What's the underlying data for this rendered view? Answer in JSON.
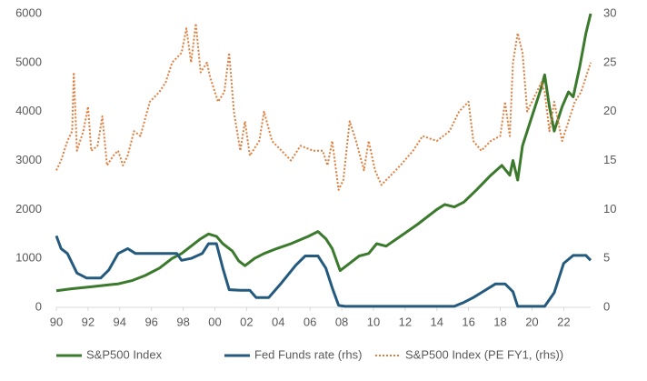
{
  "chart_data": {
    "type": "line",
    "legend": "bottom",
    "xlim": [
      1990,
      2023.7
    ],
    "xticks": [
      {
        "value": 1990,
        "label": "90"
      },
      {
        "value": 1992,
        "label": "92"
      },
      {
        "value": 1994,
        "label": "94"
      },
      {
        "value": 1996,
        "label": "96"
      },
      {
        "value": 1998,
        "label": "98"
      },
      {
        "value": 2000,
        "label": "00"
      },
      {
        "value": 2002,
        "label": "02"
      },
      {
        "value": 2004,
        "label": "04"
      },
      {
        "value": 2006,
        "label": "06"
      },
      {
        "value": 2008,
        "label": "08"
      },
      {
        "value": 2010,
        "label": "10"
      },
      {
        "value": 2012,
        "label": "12"
      },
      {
        "value": 2014,
        "label": "14"
      },
      {
        "value": 2016,
        "label": "16"
      },
      {
        "value": 2018,
        "label": "18"
      },
      {
        "value": 2020,
        "label": "20"
      },
      {
        "value": 2022,
        "label": "22"
      }
    ],
    "ylim": [
      0,
      6000
    ],
    "yticks": [
      0,
      1000,
      2000,
      3000,
      4000,
      5000,
      6000
    ],
    "y2lim": [
      0,
      30
    ],
    "y2ticks": [
      0,
      5,
      10,
      15,
      20,
      25,
      30
    ],
    "series": [
      {
        "name": "S&P500 Index",
        "color": "#3b7a2d",
        "line_style": "solid",
        "x": [
          1990.0,
          1991.0,
          1992.2,
          1993.3,
          1993.9,
          1994.8,
          1995.6,
          1996.5,
          1997.3,
          1997.9,
          1998.5,
          1999.1,
          1999.6,
          2000.1,
          2000.5,
          2001.1,
          2001.5,
          2001.9,
          2002.5,
          2003.1,
          2003.9,
          2004.8,
          2005.9,
          2006.5,
          2007.0,
          2007.4,
          2007.9,
          2008.5,
          2009.1,
          2009.7,
          2010.2,
          2010.8,
          2011.7,
          2012.8,
          2014.0,
          2014.5,
          2015.1,
          2015.7,
          2016.5,
          2017.4,
          2018.1,
          2018.6,
          2018.8,
          2019.1,
          2019.4,
          2020.0,
          2020.6,
          2020.8,
          2021.1,
          2021.4,
          2021.9,
          2022.3,
          2022.6,
          2023.0,
          2023.4,
          2023.7
        ],
        "values": [
          340,
          380,
          420,
          460,
          480,
          550,
          650,
          800,
          1000,
          1100,
          1250,
          1400,
          1500,
          1450,
          1300,
          1150,
          950,
          850,
          1000,
          1100,
          1200,
          1300,
          1450,
          1550,
          1400,
          1200,
          750,
          900,
          1050,
          1100,
          1300,
          1250,
          1450,
          1700,
          2000,
          2100,
          2050,
          2150,
          2400,
          2700,
          2900,
          2700,
          3000,
          2600,
          3300,
          3900,
          4500,
          4750,
          4100,
          3600,
          4100,
          4400,
          4300,
          4900,
          5600,
          6000
        ]
      },
      {
        "name": "Fed Funds rate (rhs)",
        "color": "#245a7d",
        "axis": "y2",
        "line_style": "solid",
        "x": [
          1990.0,
          1990.3,
          1990.7,
          1991.3,
          1991.9,
          1992.8,
          1993.3,
          1993.9,
          1994.5,
          1995.0,
          1995.9,
          1996.8,
          1997.6,
          1997.9,
          1998.5,
          1999.2,
          1999.6,
          2000.1,
          2000.5,
          2000.9,
          2001.6,
          2002.2,
          2002.6,
          2003.4,
          2004.2,
          2005.1,
          2005.7,
          2006.5,
          2007.0,
          2007.4,
          2007.8,
          2008.2,
          2010.5,
          2015.1,
          2015.7,
          2016.3,
          2016.8,
          2017.7,
          2018.3,
          2018.8,
          2019.1,
          2020.8,
          2021.4,
          2022.0,
          2022.6,
          2023.4,
          2023.7
        ],
        "values": [
          7.3,
          6,
          5.5,
          3.5,
          3,
          3,
          3.8,
          5.5,
          6,
          5.5,
          5.5,
          5.5,
          5.5,
          4.8,
          5,
          5.5,
          6.5,
          6.5,
          4,
          1.8,
          1.75,
          1.75,
          1,
          1,
          2.5,
          4.3,
          5.25,
          5.25,
          4,
          2,
          0.2,
          0.1,
          0.1,
          0.1,
          0.5,
          1,
          1.5,
          2.4,
          2.4,
          1.6,
          0.1,
          0.1,
          1.5,
          4.5,
          5.3,
          5.3,
          4.8
        ]
      },
      {
        "name": "S&P500 Index (PE FY1, (rhs))",
        "color": "#e07d3c",
        "axis": "y2",
        "line_style": "dotted",
        "x": [
          1990.0,
          1990.3,
          1990.7,
          1991.0,
          1991.1,
          1991.3,
          1991.7,
          1992.0,
          1992.2,
          1992.6,
          1992.9,
          1993.2,
          1993.6,
          1993.9,
          1994.2,
          1994.5,
          1994.9,
          1995.3,
          1995.9,
          1996.5,
          1996.9,
          1997.3,
          1997.9,
          1998.2,
          1998.5,
          1998.8,
          1999.1,
          1999.5,
          1999.7,
          2000.2,
          2000.6,
          2000.9,
          2001.2,
          2001.6,
          2001.9,
          2002.2,
          2002.8,
          2003.1,
          2003.6,
          2004.2,
          2004.8,
          2005.4,
          2006.2,
          2006.8,
          2007.1,
          2007.4,
          2007.8,
          2008.1,
          2008.5,
          2008.9,
          2009.4,
          2009.7,
          2010.1,
          2010.5,
          2011.1,
          2011.7,
          2012.5,
          2013.1,
          2014.0,
          2014.8,
          2015.4,
          2016.0,
          2016.3,
          2016.8,
          2017.4,
          2018.0,
          2018.3,
          2018.6,
          2018.8,
          2019.1,
          2019.4,
          2019.7,
          2020.3,
          2020.6,
          2020.8,
          2021.1,
          2021.4,
          2021.9,
          2022.3,
          2022.7,
          2023.1,
          2023.7
        ],
        "values": [
          14,
          15,
          17,
          18,
          24,
          16,
          18,
          20.5,
          16,
          16.5,
          19.5,
          14.5,
          15.5,
          16,
          14.5,
          15.5,
          18,
          17.5,
          21,
          22,
          23,
          25,
          26,
          28.5,
          25,
          29,
          24,
          25,
          23.5,
          21,
          22,
          26,
          20,
          16,
          19,
          15.5,
          17,
          20,
          17,
          16,
          15,
          16.5,
          16,
          16,
          14.5,
          17,
          12,
          13,
          19,
          17,
          14,
          17,
          14,
          12.5,
          13.5,
          14.5,
          16,
          17.5,
          17,
          18,
          20,
          21,
          17,
          16,
          17,
          17.5,
          21,
          17.5,
          25,
          28,
          26,
          20,
          22,
          23,
          22,
          18,
          21,
          17,
          19,
          21,
          22,
          25
        ]
      }
    ]
  }
}
